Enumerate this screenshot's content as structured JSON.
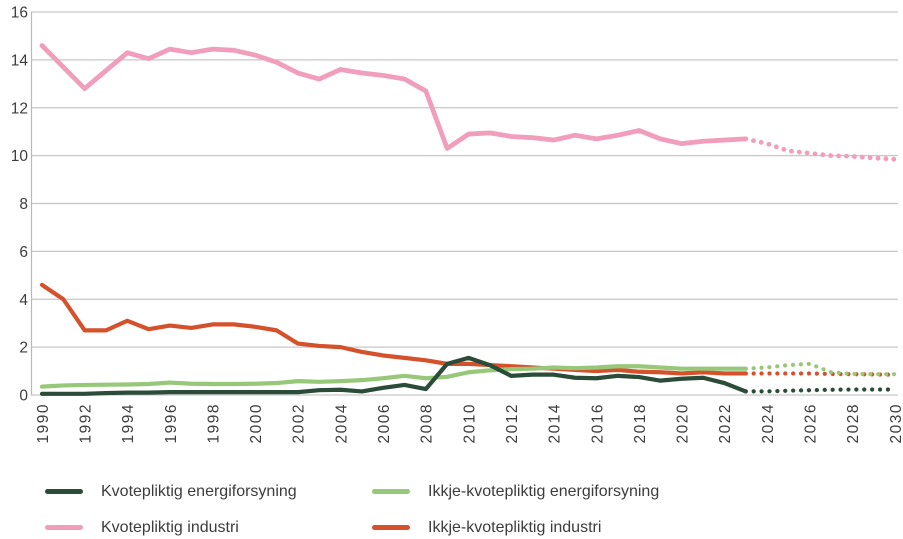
{
  "chart_data": {
    "type": "line",
    "title": "",
    "xlabel": "",
    "ylabel": "",
    "ylim": [
      0,
      16
    ],
    "y_ticks": [
      "0",
      "2",
      "4",
      "6",
      "8",
      "10",
      "12",
      "14",
      "16"
    ],
    "x_ticks": [
      "1990",
      "1992",
      "1994",
      "1996",
      "1998",
      "2000",
      "2002",
      "2004",
      "2006",
      "2008",
      "2010",
      "2012",
      "2014",
      "2016",
      "2018",
      "2020",
      "2022",
      "2024",
      "2026",
      "2028",
      "2030"
    ],
    "x": [
      1990,
      1991,
      1992,
      1993,
      1994,
      1995,
      1996,
      1997,
      1998,
      1999,
      2000,
      2001,
      2002,
      2003,
      2004,
      2005,
      2006,
      2007,
      2008,
      2009,
      2010,
      2011,
      2012,
      2013,
      2014,
      2015,
      2016,
      2017,
      2018,
      2019,
      2020,
      2021,
      2022,
      2023,
      2024,
      2025,
      2026,
      2027,
      2028,
      2029,
      2030
    ],
    "projection_start_year": 2023,
    "projection_style": "dotted",
    "grid": "horizontal",
    "gridline_color": "#c7c7c7",
    "axis_color": "#b9b9b9",
    "tick_text_color": "#3d3d3d",
    "series": [
      {
        "name": "Kvotepliktig industri",
        "color": "#f09ebc",
        "stroke_width": 4.8,
        "values": [
          14.6,
          13.7,
          12.8,
          13.55,
          14.3,
          14.05,
          14.45,
          14.3,
          14.45,
          14.4,
          14.2,
          13.9,
          13.45,
          13.2,
          13.6,
          13.45,
          13.35,
          13.2,
          12.7,
          10.3,
          10.9,
          10.95,
          10.8,
          10.75,
          10.65,
          10.85,
          10.7,
          10.85,
          11.05,
          10.7,
          10.5,
          10.6,
          10.65,
          10.7,
          10.5,
          10.2,
          10.1,
          10.0,
          9.97,
          9.9,
          9.85
        ]
      },
      {
        "name": "Ikkje-kvotepliktig industri",
        "color": "#d4512b",
        "stroke_width": 4.2,
        "values": [
          4.6,
          4.0,
          2.7,
          2.7,
          3.1,
          2.75,
          2.9,
          2.8,
          2.95,
          2.95,
          2.85,
          2.7,
          2.15,
          2.05,
          2.0,
          1.8,
          1.65,
          1.55,
          1.45,
          1.3,
          1.3,
          1.25,
          1.2,
          1.15,
          1.1,
          1.05,
          1.0,
          1.05,
          0.97,
          0.95,
          0.9,
          0.95,
          0.9,
          0.9,
          0.9,
          0.9,
          0.9,
          0.88,
          0.87,
          0.86,
          0.85
        ]
      },
      {
        "name": "Ikkje-kvotepliktig energiforsyning",
        "color": "#97c87a",
        "stroke_width": 4.2,
        "values": [
          0.35,
          0.4,
          0.42,
          0.43,
          0.44,
          0.46,
          0.52,
          0.47,
          0.46,
          0.46,
          0.47,
          0.5,
          0.58,
          0.55,
          0.58,
          0.62,
          0.7,
          0.8,
          0.7,
          0.76,
          0.95,
          1.03,
          1.08,
          1.1,
          1.15,
          1.12,
          1.15,
          1.2,
          1.2,
          1.15,
          1.1,
          1.1,
          1.1,
          1.1,
          1.15,
          1.25,
          1.3,
          0.95,
          0.88,
          0.87,
          0.87
        ]
      },
      {
        "name": "Kvotepliktig energiforsyning",
        "color": "#2b4c38",
        "stroke_width": 4.2,
        "values": [
          0.05,
          0.05,
          0.05,
          0.08,
          0.1,
          0.1,
          0.12,
          0.12,
          0.12,
          0.12,
          0.12,
          0.12,
          0.12,
          0.2,
          0.22,
          0.15,
          0.3,
          0.42,
          0.25,
          1.3,
          1.55,
          1.25,
          0.8,
          0.85,
          0.85,
          0.72,
          0.7,
          0.8,
          0.75,
          0.6,
          0.68,
          0.72,
          0.5,
          0.15,
          0.15,
          0.18,
          0.2,
          0.22,
          0.23,
          0.23,
          0.23
        ]
      }
    ],
    "legend_position": "bottom",
    "legend": [
      {
        "label": "Kvotepliktig energiforsyning",
        "series": 3
      },
      {
        "label": "Ikkje-kvotepliktig energiforsyning",
        "series": 2
      },
      {
        "label": "Kvotepliktig industri",
        "series": 0
      },
      {
        "label": "Ikkje-kvotepliktig industri",
        "series": 1
      }
    ]
  }
}
